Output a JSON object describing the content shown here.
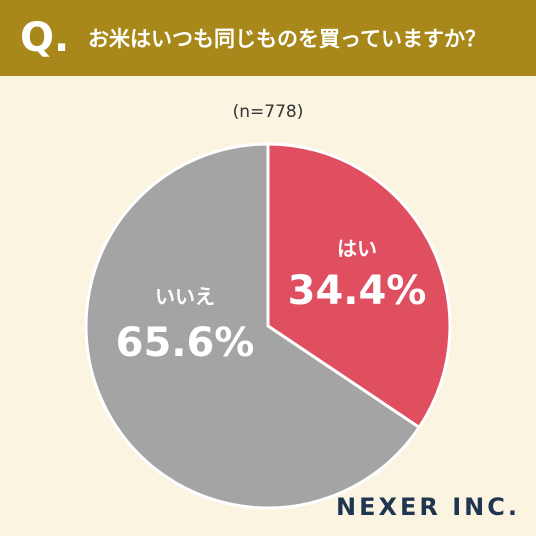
{
  "badge": "Q.",
  "logo": "NEXER INC.",
  "chart_data": {
    "type": "pie",
    "title": "お米はいつも同じものを買っていますか？",
    "subtitle": "(n=778)",
    "categories": [
      "はい",
      "いいえ"
    ],
    "values": [
      34.4,
      65.6
    ],
    "value_labels": [
      "34.4%",
      "65.6%"
    ],
    "colors": [
      "#e04f60",
      "#a4a4a4"
    ]
  }
}
